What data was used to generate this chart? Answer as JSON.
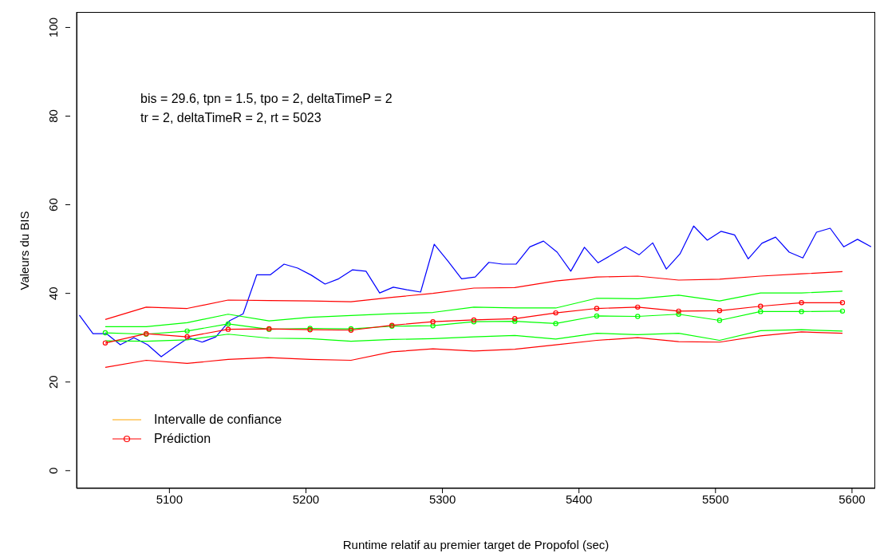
{
  "chart_data": {
    "type": "line",
    "xlabel": "Runtime relatif au premier target de Propofol (sec)",
    "ylabel": "Valeurs du BIS",
    "annotations": [
      "bis = 29.6, tpn = 1.5, tpo = 2, deltaTimeP = 2",
      "tr = 2, deltaTimeR = 2, rt = 5023"
    ],
    "xlim": [
      5032,
      5617
    ],
    "xticks": [
      5100,
      5200,
      5300,
      5400,
      5500,
      5600
    ],
    "ylim": [
      -4,
      103.5
    ],
    "yticks": [
      0,
      20,
      40,
      60,
      80,
      100
    ],
    "grid": false,
    "legend": "bottom left",
    "line_style": "solid",
    "series": [
      {
        "color": "#0000ff",
        "marker": "none",
        "x": [
          5034,
          5044,
          5054,
          5064,
          5074,
          5084,
          5094,
          5104,
          5114,
          5124,
          5134,
          5144,
          5154,
          5164,
          5174,
          5184,
          5194,
          5204,
          5214,
          5224,
          5234,
          5244,
          5254,
          5264,
          5274,
          5284,
          5294,
          5304,
          5314,
          5324,
          5334,
          5344,
          5354,
          5364,
          5374,
          5384,
          5394,
          5404,
          5414,
          5424,
          5434,
          5444,
          5454,
          5464,
          5474,
          5484,
          5494,
          5504,
          5514,
          5524,
          5534,
          5544,
          5554,
          5564,
          5574,
          5584,
          5594,
          5604,
          5614
        ],
        "values": [
          35.1,
          30.9,
          30.9,
          28.4,
          30.0,
          28.4,
          25.7,
          27.9,
          30.0,
          29.0,
          30.2,
          33.8,
          35.4,
          44.2,
          44.2,
          46.6,
          45.7,
          44.1,
          42.1,
          43.3,
          45.3,
          45.0,
          40.1,
          41.4,
          40.8,
          40.3,
          51.1,
          47.3,
          43.3,
          43.7,
          47.0,
          46.6,
          46.6,
          50.5,
          51.8,
          49.3,
          45.0,
          50.4,
          46.9,
          48.7,
          50.5,
          48.7,
          51.4,
          45.5,
          48.9,
          55.2,
          52.0,
          54.0,
          53.2,
          47.8,
          51.3,
          52.7,
          49.3,
          48.0,
          53.8,
          54.7,
          50.5,
          52.2,
          50.5
        ]
      },
      {
        "color": "#ff0000",
        "marker": "none",
        "x": [
          5053,
          5083,
          5113,
          5143,
          5173,
          5203,
          5233,
          5263,
          5293,
          5323,
          5353,
          5383,
          5413,
          5443,
          5473,
          5503,
          5533,
          5563,
          5593
        ],
        "values": [
          34.1,
          36.9,
          36.6,
          38.5,
          38.4,
          38.3,
          38.1,
          39.1,
          40.0,
          41.2,
          41.3,
          42.8,
          43.7,
          43.9,
          43.0,
          43.2,
          43.9,
          44.4,
          44.9
        ]
      },
      {
        "color": "#ff0000",
        "marker": "none",
        "x": [
          5053,
          5083,
          5113,
          5143,
          5173,
          5203,
          5233,
          5263,
          5293,
          5323,
          5353,
          5383,
          5413,
          5443,
          5473,
          5503,
          5533,
          5563,
          5593
        ],
        "values": [
          23.3,
          24.9,
          24.2,
          25.1,
          25.5,
          25.1,
          24.9,
          26.8,
          27.5,
          27.0,
          27.4,
          28.4,
          29.4,
          30.0,
          29.1,
          29.0,
          30.4,
          31.3,
          31.0
        ]
      },
      {
        "color": "#00ff00",
        "marker": "none",
        "x": [
          5053,
          5083,
          5113,
          5143,
          5173,
          5203,
          5233,
          5263,
          5293,
          5323,
          5353,
          5383,
          5413,
          5443,
          5473,
          5503,
          5533,
          5563,
          5593
        ],
        "values": [
          32.5,
          32.5,
          33.4,
          35.3,
          33.8,
          34.6,
          35.0,
          35.4,
          35.7,
          36.9,
          36.7,
          36.7,
          38.9,
          38.8,
          39.6,
          38.3,
          40.1,
          40.1,
          40.5
        ]
      },
      {
        "color": "#00ff00",
        "marker": "none",
        "x": [
          5053,
          5083,
          5113,
          5143,
          5173,
          5203,
          5233,
          5263,
          5293,
          5323,
          5353,
          5383,
          5413,
          5443,
          5473,
          5503,
          5533,
          5563,
          5593
        ],
        "values": [
          29.3,
          29.2,
          29.5,
          30.8,
          29.9,
          29.8,
          29.2,
          29.6,
          29.8,
          30.2,
          30.5,
          29.7,
          31.0,
          30.7,
          31.0,
          29.4,
          31.6,
          31.8,
          31.5
        ]
      },
      {
        "color": "#00ff00",
        "marker": "circle",
        "x": [
          5053,
          5083,
          5113,
          5143,
          5173,
          5203,
          5233,
          5263,
          5293,
          5323,
          5353,
          5383,
          5413,
          5443,
          5473,
          5503,
          5533,
          5563,
          5593
        ],
        "values": [
          31.1,
          30.8,
          31.5,
          33.1,
          31.9,
          32.1,
          32.0,
          32.6,
          32.7,
          33.6,
          33.7,
          33.2,
          34.9,
          34.8,
          35.3,
          33.9,
          35.9,
          35.9,
          36.0
        ]
      },
      {
        "name": "Prédiction",
        "color": "#ff0000",
        "marker": "circle",
        "x": [
          5053,
          5083,
          5113,
          5143,
          5173,
          5203,
          5233,
          5263,
          5293,
          5323,
          5353,
          5383,
          5413,
          5443,
          5473,
          5503,
          5533,
          5563,
          5593
        ],
        "values": [
          28.8,
          30.9,
          30.2,
          31.9,
          32.0,
          31.8,
          31.7,
          32.8,
          33.6,
          34.0,
          34.3,
          35.6,
          36.6,
          36.9,
          36.0,
          36.1,
          37.1,
          37.9,
          37.9
        ]
      },
      {
        "name": "Intervalle de confiance",
        "color": "#ffa500",
        "marker": "none"
      }
    ]
  }
}
